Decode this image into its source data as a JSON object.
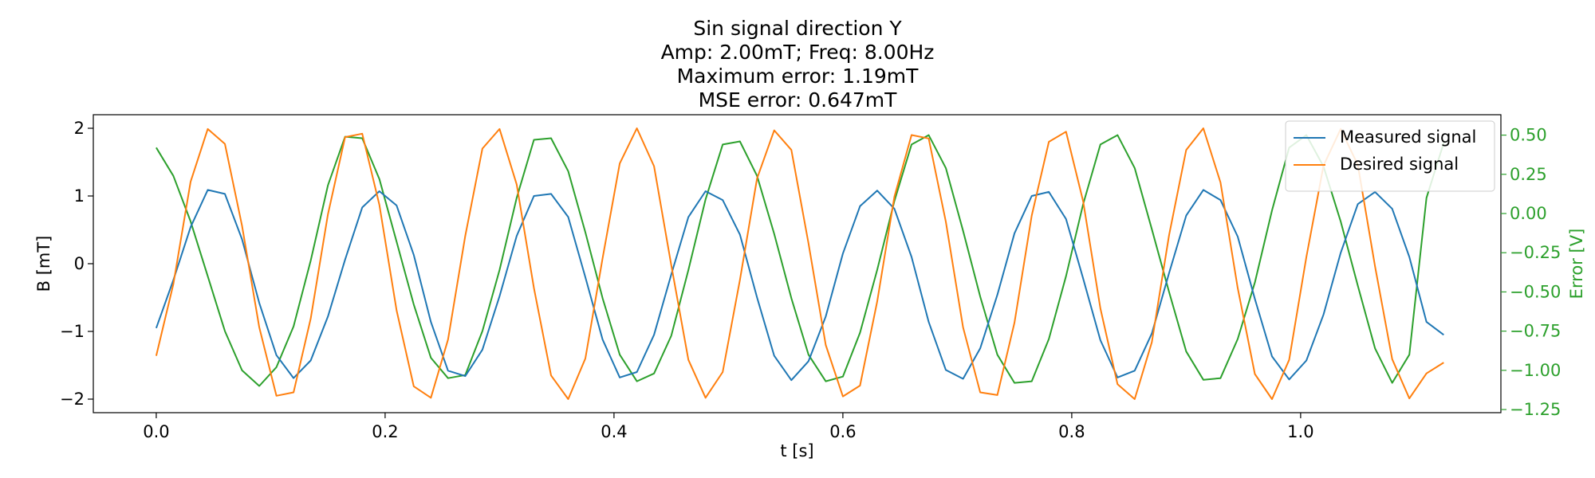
{
  "chart_data": {
    "type": "line",
    "title_lines": [
      "Sin signal direction Y",
      "Amp: 2.00mT; Freq: 8.00Hz",
      "Maximum error: 1.19mT",
      "MSE error: 0.647mT"
    ],
    "xlabel": "t [s]",
    "ylabel_left": "B [mT]",
    "ylabel_right": "Error [V]",
    "xlim": [
      -0.055,
      1.175
    ],
    "ylim_left": [
      -2.2,
      2.2
    ],
    "ylim_right": [
      -1.27,
      0.63
    ],
    "x_ticks": [
      0.0,
      0.2,
      0.4,
      0.6,
      0.8,
      1.0
    ],
    "x_tick_labels": [
      "0.0",
      "0.2",
      "0.4",
      "0.6",
      "0.8",
      "1.0"
    ],
    "y_left_ticks": [
      2,
      1,
      0,
      -1,
      -2
    ],
    "y_left_tick_labels": [
      "2",
      "1",
      "0",
      "−1",
      "−2"
    ],
    "y_right_ticks": [
      0.5,
      0.25,
      0.0,
      -0.25,
      -0.5,
      -0.75,
      -1.0,
      -1.25
    ],
    "y_right_tick_labels": [
      "0.50",
      "0.25",
      "0.00",
      "−0.25",
      "−0.50",
      "−0.75",
      "−1.00",
      "−1.25"
    ],
    "legend_position": "top-right",
    "grid": false,
    "series": [
      {
        "name": "Measured signal",
        "axis": "left",
        "color": "#1f77b4",
        "x": [
          0.0,
          0.015,
          0.03,
          0.045,
          0.06,
          0.075,
          0.09,
          0.105,
          0.12,
          0.135,
          0.15,
          0.165,
          0.18,
          0.195,
          0.21,
          0.225,
          0.24,
          0.255,
          0.27,
          0.285,
          0.3,
          0.315,
          0.33,
          0.345,
          0.36,
          0.375,
          0.39,
          0.405,
          0.42,
          0.435,
          0.45,
          0.465,
          0.48,
          0.495,
          0.51,
          0.525,
          0.54,
          0.555,
          0.57,
          0.585,
          0.6,
          0.615,
          0.63,
          0.645,
          0.66,
          0.675,
          0.69,
          0.705,
          0.72,
          0.735,
          0.75,
          0.765,
          0.78,
          0.795,
          0.81,
          0.825,
          0.84,
          0.855,
          0.87,
          0.885,
          0.9,
          0.915,
          0.93,
          0.945,
          0.96,
          0.975,
          0.99,
          1.005,
          1.02,
          1.035,
          1.05,
          1.065,
          1.08,
          1.095,
          1.11,
          1.125
        ],
        "y": [
          -0.95,
          -0.24,
          0.54,
          1.09,
          1.03,
          0.36,
          -0.58,
          -1.35,
          -1.69,
          -1.43,
          -0.78,
          0.06,
          0.83,
          1.07,
          0.86,
          0.13,
          -0.86,
          -1.58,
          -1.66,
          -1.27,
          -0.48,
          0.41,
          1.0,
          1.03,
          0.69,
          -0.2,
          -1.12,
          -1.68,
          -1.6,
          -1.05,
          -0.16,
          0.69,
          1.07,
          0.94,
          0.43,
          -0.5,
          -1.36,
          -1.72,
          -1.44,
          -0.78,
          0.15,
          0.85,
          1.08,
          0.81,
          0.1,
          -0.86,
          -1.57,
          -1.7,
          -1.25,
          -0.46,
          0.45,
          1.0,
          1.06,
          0.66,
          -0.22,
          -1.13,
          -1.68,
          -1.58,
          -1.03,
          -0.14,
          0.71,
          1.09,
          0.94,
          0.4,
          -0.52,
          -1.37,
          -1.71,
          -1.43,
          -0.75,
          0.16,
          0.88,
          1.06,
          0.81,
          0.1,
          -0.86,
          -1.05
        ]
      },
      {
        "name": "Desired signal",
        "axis": "left",
        "color": "#ff7f0e",
        "x": [
          0.0,
          0.015,
          0.03,
          0.045,
          0.06,
          0.075,
          0.09,
          0.105,
          0.12,
          0.135,
          0.15,
          0.165,
          0.18,
          0.195,
          0.21,
          0.225,
          0.24,
          0.255,
          0.27,
          0.285,
          0.3,
          0.315,
          0.33,
          0.345,
          0.36,
          0.375,
          0.39,
          0.405,
          0.42,
          0.435,
          0.45,
          0.465,
          0.48,
          0.495,
          0.51,
          0.525,
          0.54,
          0.555,
          0.57,
          0.585,
          0.6,
          0.615,
          0.63,
          0.645,
          0.66,
          0.675,
          0.69,
          0.705,
          0.72,
          0.735,
          0.75,
          0.765,
          0.78,
          0.795,
          0.81,
          0.825,
          0.84,
          0.855,
          0.87,
          0.885,
          0.9,
          0.915,
          0.93,
          0.945,
          0.96,
          0.975,
          0.99,
          1.005,
          1.02,
          1.035,
          1.05,
          1.065,
          1.08,
          1.095,
          1.11,
          1.125
        ],
        "y": [
          -1.36,
          -0.3,
          1.21,
          1.99,
          1.77,
          0.56,
          -0.94,
          -1.95,
          -1.9,
          -0.81,
          0.73,
          1.87,
          1.92,
          0.87,
          -0.69,
          -1.81,
          -1.98,
          -1.12,
          0.41,
          1.7,
          1.99,
          1.17,
          -0.36,
          -1.65,
          -2.0,
          -1.4,
          0.08,
          1.48,
          2.0,
          1.44,
          -0.02,
          -1.42,
          -1.98,
          -1.6,
          -0.24,
          1.26,
          1.97,
          1.68,
          0.3,
          -1.2,
          -1.96,
          -1.8,
          -0.56,
          0.99,
          1.9,
          1.85,
          0.62,
          -0.94,
          -1.9,
          -1.94,
          -0.87,
          0.71,
          1.8,
          1.95,
          0.92,
          -0.66,
          -1.78,
          -2.0,
          -1.16,
          0.42,
          1.68,
          2.0,
          1.2,
          -0.36,
          -1.63,
          -2.0,
          -1.42,
          0.1,
          1.45,
          1.99,
          1.46,
          -0.04,
          -1.41,
          -1.99,
          -1.62,
          -1.46
        ]
      },
      {
        "name": "",
        "axis": "right",
        "color": "#2ca02c",
        "x": [
          0.0,
          0.015,
          0.03,
          0.045,
          0.06,
          0.075,
          0.09,
          0.105,
          0.12,
          0.135,
          0.15,
          0.165,
          0.18,
          0.195,
          0.21,
          0.225,
          0.24,
          0.255,
          0.27,
          0.285,
          0.3,
          0.315,
          0.33,
          0.345,
          0.36,
          0.375,
          0.39,
          0.405,
          0.42,
          0.435,
          0.45,
          0.465,
          0.48,
          0.495,
          0.51,
          0.525,
          0.54,
          0.555,
          0.57,
          0.585,
          0.6,
          0.615,
          0.63,
          0.645,
          0.66,
          0.675,
          0.69,
          0.705,
          0.72,
          0.735,
          0.75,
          0.765,
          0.78,
          0.795,
          0.81,
          0.825,
          0.84,
          0.855,
          0.87,
          0.885,
          0.9,
          0.915,
          0.93,
          0.945,
          0.96,
          0.975,
          0.99,
          1.005,
          1.02,
          1.035,
          1.05,
          1.065,
          1.08,
          1.095,
          1.11,
          1.125
        ],
        "y": [
          0.42,
          0.24,
          -0.05,
          -0.4,
          -0.75,
          -1.0,
          -1.1,
          -0.98,
          -0.72,
          -0.3,
          0.18,
          0.49,
          0.48,
          0.22,
          -0.18,
          -0.58,
          -0.92,
          -1.05,
          -1.03,
          -0.75,
          -0.36,
          0.1,
          0.47,
          0.48,
          0.27,
          -0.12,
          -0.54,
          -0.9,
          -1.07,
          -1.02,
          -0.78,
          -0.36,
          0.09,
          0.44,
          0.46,
          0.24,
          -0.13,
          -0.54,
          -0.9,
          -1.07,
          -1.04,
          -0.76,
          -0.36,
          0.08,
          0.44,
          0.5,
          0.29,
          -0.11,
          -0.53,
          -0.9,
          -1.08,
          -1.07,
          -0.8,
          -0.4,
          0.06,
          0.44,
          0.5,
          0.29,
          -0.1,
          -0.5,
          -0.88,
          -1.06,
          -1.05,
          -0.8,
          -0.44,
          0.02,
          0.42,
          0.5,
          0.3,
          -0.05,
          -0.46,
          -0.86,
          -1.08,
          -0.9,
          0.1,
          0.45
        ]
      }
    ]
  }
}
